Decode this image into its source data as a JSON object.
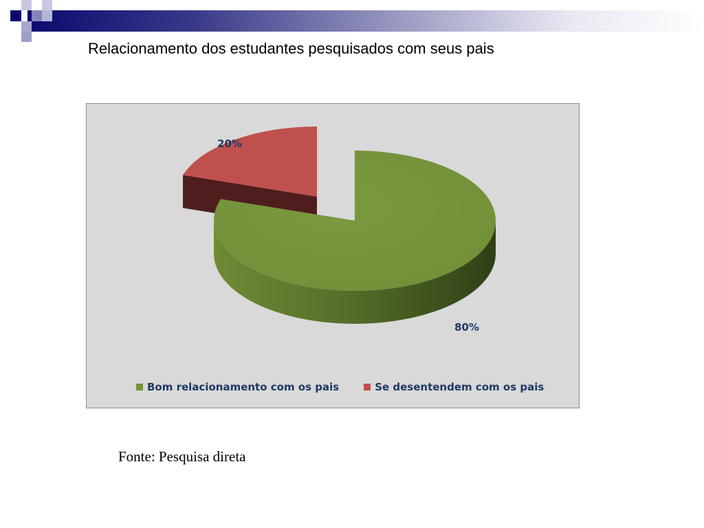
{
  "slide": {
    "title": "Relacionamento dos estudantes pesquisados com seus pais",
    "source": "Fonte: Pesquisa direta"
  },
  "colors": {
    "header_dark": "#0a0a6e",
    "header_mid": "#7f7fb8",
    "header_light": "#c0c0dc",
    "chart_background": "#d9d9d9",
    "label_text": "#1f3864"
  },
  "chart_data": {
    "type": "pie",
    "style": "3d-exploded",
    "title": "",
    "categories": [
      "Bom relacionamento com os pais",
      "Se desentendem com os pais"
    ],
    "values": [
      80,
      20
    ],
    "labels": [
      "80%",
      "20%"
    ],
    "colors": [
      "#77933c",
      "#c0504d"
    ],
    "legend_position": "bottom"
  }
}
